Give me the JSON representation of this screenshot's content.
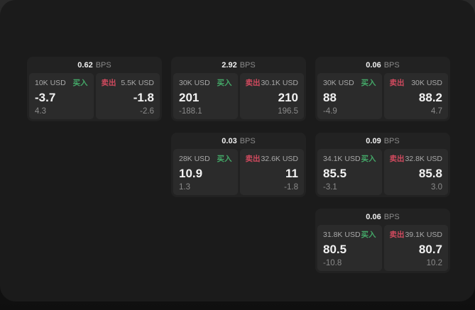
{
  "labels": {
    "bps_unit": "BPS",
    "buy": "买入",
    "sell": "卖出"
  },
  "colors": {
    "buy_green": "#44a868",
    "sell_red": "#d04a5e",
    "panel_bg": "#1b1b1b",
    "card_bg": "#222222",
    "tile_bg": "#2b2b2b"
  },
  "cards": [
    {
      "bps": "0.62",
      "buy": {
        "notional": "10K USD",
        "price": "-3.7",
        "delta": "4.3"
      },
      "sell": {
        "notional": "5.5K USD",
        "price": "-1.8",
        "delta": "-2.6"
      }
    },
    {
      "bps": "2.92",
      "buy": {
        "notional": "30K USD",
        "price": "201",
        "delta": "-188.1"
      },
      "sell": {
        "notional": "30.1K USD",
        "price": "210",
        "delta": "196.5"
      }
    },
    {
      "bps": "0.06",
      "buy": {
        "notional": "30K USD",
        "price": "88",
        "delta": "-4.9"
      },
      "sell": {
        "notional": "30K USD",
        "price": "88.2",
        "delta": "4.7"
      }
    },
    {
      "bps": "0.03",
      "buy": {
        "notional": "28K USD",
        "price": "10.9",
        "delta": "1.3"
      },
      "sell": {
        "notional": "32.6K USD",
        "price": "11",
        "delta": "-1.8"
      }
    },
    {
      "bps": "0.09",
      "buy": {
        "notional": "34.1K USD",
        "price": "85.5",
        "delta": "-3.1"
      },
      "sell": {
        "notional": "32.8K USD",
        "price": "85.8",
        "delta": "3.0"
      }
    },
    {
      "bps": "0.06",
      "buy": {
        "notional": "31.8K USD",
        "price": "80.5",
        "delta": "-10.8"
      },
      "sell": {
        "notional": "39.1K USD",
        "price": "80.7",
        "delta": "10.2"
      }
    }
  ]
}
